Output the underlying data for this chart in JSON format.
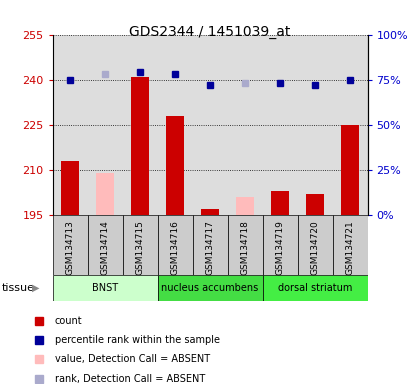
{
  "title": "GDS2344 / 1451039_at",
  "samples": [
    "GSM134713",
    "GSM134714",
    "GSM134715",
    "GSM134716",
    "GSM134717",
    "GSM134718",
    "GSM134719",
    "GSM134720",
    "GSM134721"
  ],
  "count_values": [
    213,
    null,
    241,
    228,
    197,
    null,
    203,
    202,
    225
  ],
  "count_absent": [
    null,
    209,
    null,
    null,
    null,
    201,
    null,
    null,
    null
  ],
  "rank_values": [
    75,
    null,
    79,
    78,
    72,
    null,
    73,
    72,
    75
  ],
  "rank_absent": [
    null,
    78,
    null,
    null,
    null,
    73,
    null,
    null,
    null
  ],
  "ylim_left": [
    195,
    255
  ],
  "ylim_right": [
    0,
    100
  ],
  "yticks_left": [
    195,
    210,
    225,
    240,
    255
  ],
  "yticks_right": [
    0,
    25,
    50,
    75,
    100
  ],
  "ytick_labels_right": [
    "0%",
    "25%",
    "50%",
    "75%",
    "100%"
  ],
  "tissue_groups": [
    {
      "label": "BNST",
      "start": 0,
      "end": 3,
      "color": "#ccffcc"
    },
    {
      "label": "nucleus accumbens",
      "start": 3,
      "end": 6,
      "color": "#44dd44"
    },
    {
      "label": "dorsal striatum",
      "start": 6,
      "end": 9,
      "color": "#44ee44"
    }
  ],
  "bar_width": 0.5,
  "count_color": "#cc0000",
  "count_absent_color": "#ffbbbb",
  "rank_color": "#000099",
  "rank_absent_color": "#aaaacc",
  "grid_color": "#000000",
  "bg_color": "#ffffff",
  "axis_bg": "#dddddd",
  "left_label_color": "#cc0000",
  "right_label_color": "#0000cc"
}
